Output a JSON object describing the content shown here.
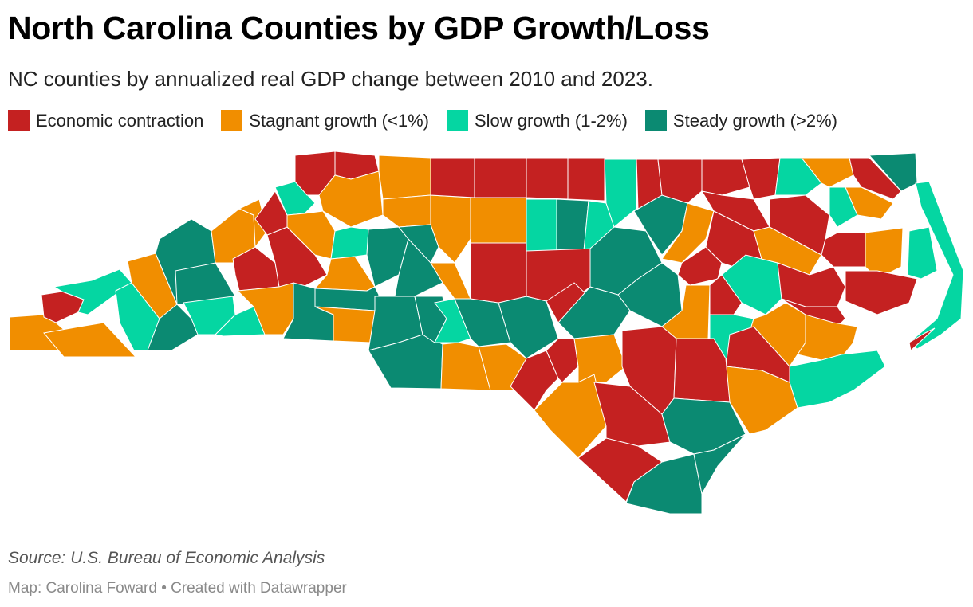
{
  "title": "North Carolina Counties by GDP Growth/Loss",
  "subtitle": "NC counties by annualized real GDP change between 2010 and 2023.",
  "legend": [
    {
      "key": "contraction",
      "label": "Economic contraction",
      "color": "#c42121"
    },
    {
      "key": "stagnant",
      "label": "Stagnant growth (<1%)",
      "color": "#f18e00"
    },
    {
      "key": "slow",
      "label": "Slow growth (1-2%)",
      "color": "#05d6a2"
    },
    {
      "key": "steady",
      "label": "Steady growth (>2%)",
      "color": "#0b8a72"
    }
  ],
  "source": "Source: U.S. Bureau of Economic Analysis",
  "credit": "Map: Carolina Foward • Created with Datawrapper"
}
